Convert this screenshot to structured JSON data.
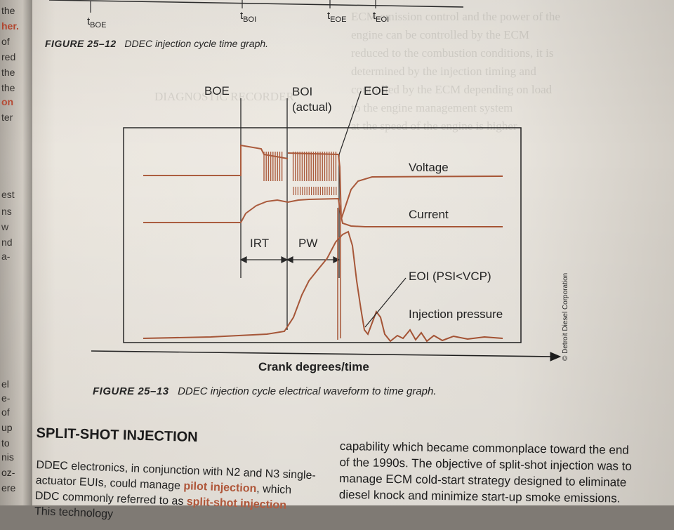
{
  "left_page_fragments": [
    "the",
    "her.",
    "of",
    "red",
    "the",
    "the",
    "on",
    "ter",
    "est",
    "ns",
    "w",
    "nd",
    "a-",
    "el",
    "e-",
    "of",
    "up",
    "to",
    "nis",
    "oz-",
    "ere"
  ],
  "top_axis": {
    "labels": [
      {
        "base": "t",
        "sub": "BOE"
      },
      {
        "base": "t",
        "sub": "BOI"
      },
      {
        "base": "t",
        "sub": "EOE"
      },
      {
        "base": "t",
        "sub": "EOI"
      }
    ]
  },
  "figure_12": {
    "number": "FIGURE 25–12",
    "title": "DDEC injection cycle time graph."
  },
  "figure_13": {
    "number": "FIGURE 25–13",
    "title": "DDEC injection cycle electrical waveform to time graph.",
    "credit": "© Detroit Diesel Corporation"
  },
  "chart_data": {
    "type": "line",
    "title": "",
    "xlabel": "Crank degrees/time",
    "ylabel": "",
    "markers": [
      {
        "label": "BOE",
        "x": 0.21
      },
      {
        "label": "BOI (actual)",
        "x": 0.305
      },
      {
        "label": "EOE",
        "x": 0.505
      }
    ],
    "intervals": [
      {
        "label": "IRT",
        "from": "BOE",
        "to": "BOI (actual)"
      },
      {
        "label": "PW",
        "from": "BOI (actual)",
        "to": "EOE"
      }
    ],
    "series": [
      {
        "name": "Voltage",
        "x": [
          0,
          0.21,
          0.22,
          0.3,
          0.31,
          0.5,
          0.51,
          0.56,
          0.62,
          1.0
        ],
        "y": [
          0.8,
          0.8,
          0.96,
          0.9,
          0.92,
          0.92,
          0.3,
          0.72,
          0.78,
          0.78
        ]
      },
      {
        "name": "Current",
        "x": [
          0,
          0.21,
          0.25,
          0.3,
          0.5,
          0.51,
          0.56,
          0.62,
          1.0
        ],
        "y": [
          0.55,
          0.55,
          0.68,
          0.7,
          0.72,
          0.6,
          0.55,
          0.54,
          0.54
        ]
      },
      {
        "name": "Injection pressure",
        "x": [
          0,
          0.3,
          0.35,
          0.42,
          0.47,
          0.52,
          0.54,
          0.56,
          0.6,
          0.64,
          1.0
        ],
        "y": [
          0.02,
          0.05,
          0.3,
          0.45,
          0.55,
          0.4,
          0.05,
          0.12,
          0.03,
          0.04,
          0.02
        ]
      }
    ],
    "annotations": [
      "EOI (PSI<VCP)"
    ]
  },
  "section": {
    "heading": "SPLIT-SHOT INJECTION",
    "left_lines": [
      [
        "DDEC electronics, in conjunction with N2 and N3 single-"
      ],
      [
        "actuator EUIs, could manage ",
        {
          "hl": "pilot injection"
        },
        ", which"
      ],
      [
        "DDC commonly referred to as ",
        {
          "hl": "split-shot injection"
        }
      ],
      [
        "This technology"
      ]
    ],
    "right_lines": [
      "capability which became commonplace toward the end",
      "of the 1990s. The objective of split-shot injection was to",
      "manage ECM cold-start strategy designed to eliminate",
      "diesel knock and minimize start-up smoke emissions."
    ]
  },
  "colors": {
    "trace": "#a65232",
    "ink": "#1e1e1e",
    "highlight": "#b85a3c"
  }
}
